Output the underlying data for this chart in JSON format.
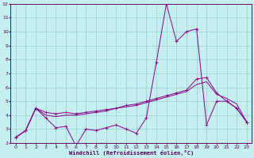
{
  "background_color": "#c5eeee",
  "grid_color": "#99cccc",
  "line_color": "#880088",
  "spine_color": "#660066",
  "tick_color": "#550055",
  "xlabel": "Windchill (Refroidissement éolien,°C)",
  "xlim": [
    -0.5,
    23.5
  ],
  "ylim": [
    2,
    12
  ],
  "xticks": [
    0,
    1,
    2,
    3,
    4,
    5,
    6,
    7,
    8,
    9,
    10,
    11,
    12,
    13,
    14,
    15,
    16,
    17,
    18,
    19,
    20,
    21,
    22,
    23
  ],
  "yticks": [
    2,
    3,
    4,
    5,
    6,
    7,
    8,
    9,
    10,
    11,
    12
  ],
  "series1_x": [
    0,
    1,
    2,
    3,
    4,
    5,
    6,
    7,
    8,
    9,
    10,
    11,
    12,
    13,
    14,
    15,
    16,
    17,
    18,
    19,
    20,
    21,
    22,
    23
  ],
  "series1_y": [
    2.4,
    2.9,
    4.5,
    3.8,
    3.1,
    3.2,
    1.8,
    3.0,
    2.9,
    3.1,
    3.3,
    3.0,
    2.7,
    3.8,
    7.8,
    12.0,
    9.3,
    10.0,
    10.2,
    3.3,
    5.0,
    5.0,
    4.5,
    3.5
  ],
  "series2_x": [
    0,
    1,
    2,
    3,
    4,
    5,
    6,
    7,
    8,
    9,
    10,
    11,
    12,
    13,
    14,
    15,
    16,
    17,
    18,
    19,
    20,
    21,
    22,
    23
  ],
  "series2_y": [
    2.4,
    2.9,
    4.5,
    4.2,
    4.1,
    4.2,
    4.1,
    4.2,
    4.3,
    4.4,
    4.5,
    4.7,
    4.8,
    5.0,
    5.2,
    5.4,
    5.6,
    5.8,
    6.6,
    6.7,
    5.6,
    5.0,
    4.5,
    3.5
  ],
  "series3_x": [
    0,
    1,
    2,
    3,
    4,
    5,
    6,
    7,
    8,
    9,
    10,
    11,
    12,
    13,
    14,
    15,
    16,
    17,
    18,
    19,
    20,
    21,
    22,
    23
  ],
  "series3_y": [
    2.4,
    2.9,
    4.5,
    4.0,
    3.9,
    4.0,
    4.0,
    4.1,
    4.2,
    4.3,
    4.5,
    4.6,
    4.7,
    4.9,
    5.1,
    5.3,
    5.5,
    5.7,
    6.2,
    6.4,
    5.5,
    5.2,
    4.8,
    3.5
  ]
}
